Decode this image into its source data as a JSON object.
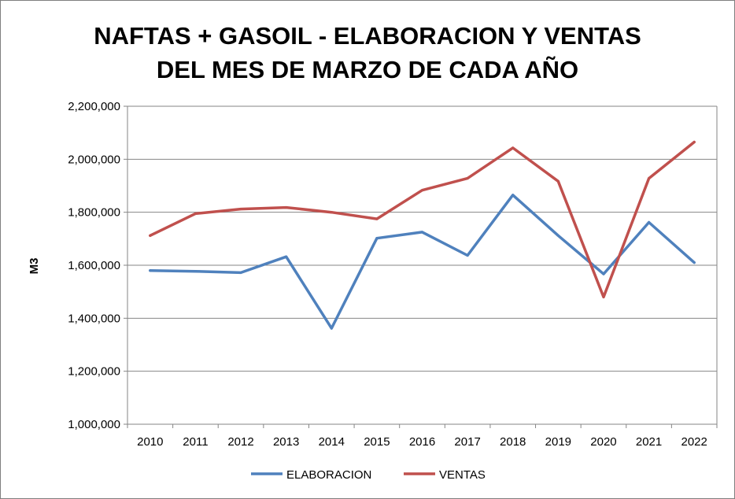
{
  "chart_data": {
    "type": "line",
    "title_lines": [
      "NAFTAS + GASOIL - ELABORACION Y VENTAS",
      "DEL MES DE MARZO DE CADA AÑO"
    ],
    "xlabel": "",
    "ylabel": "M3",
    "categories": [
      "2010",
      "2011",
      "2012",
      "2013",
      "2014",
      "2015",
      "2016",
      "2017",
      "2018",
      "2019",
      "2020",
      "2021",
      "2022"
    ],
    "ylim": [
      1000000,
      2200000
    ],
    "yticks": [
      1000000,
      1200000,
      1400000,
      1600000,
      1800000,
      2000000,
      2200000
    ],
    "ytick_labels": [
      "1,000,000",
      "1,200,000",
      "1,400,000",
      "1,600,000",
      "1,800,000",
      "2,000,000",
      "2,200,000"
    ],
    "grid": "horizontal",
    "legend_position": "bottom",
    "series": [
      {
        "name": "ELABORACION",
        "color": "#4f81bd",
        "values": [
          1580000,
          1577000,
          1572000,
          1632000,
          1362000,
          1702000,
          1725000,
          1637000,
          1865000,
          1712000,
          1567000,
          1762000,
          1610000
        ]
      },
      {
        "name": "VENTAS",
        "color": "#c0504d",
        "values": [
          1712000,
          1795000,
          1812000,
          1818000,
          1800000,
          1775000,
          1883000,
          1928000,
          2043000,
          1917000,
          1480000,
          1928000,
          2065000
        ]
      }
    ]
  }
}
